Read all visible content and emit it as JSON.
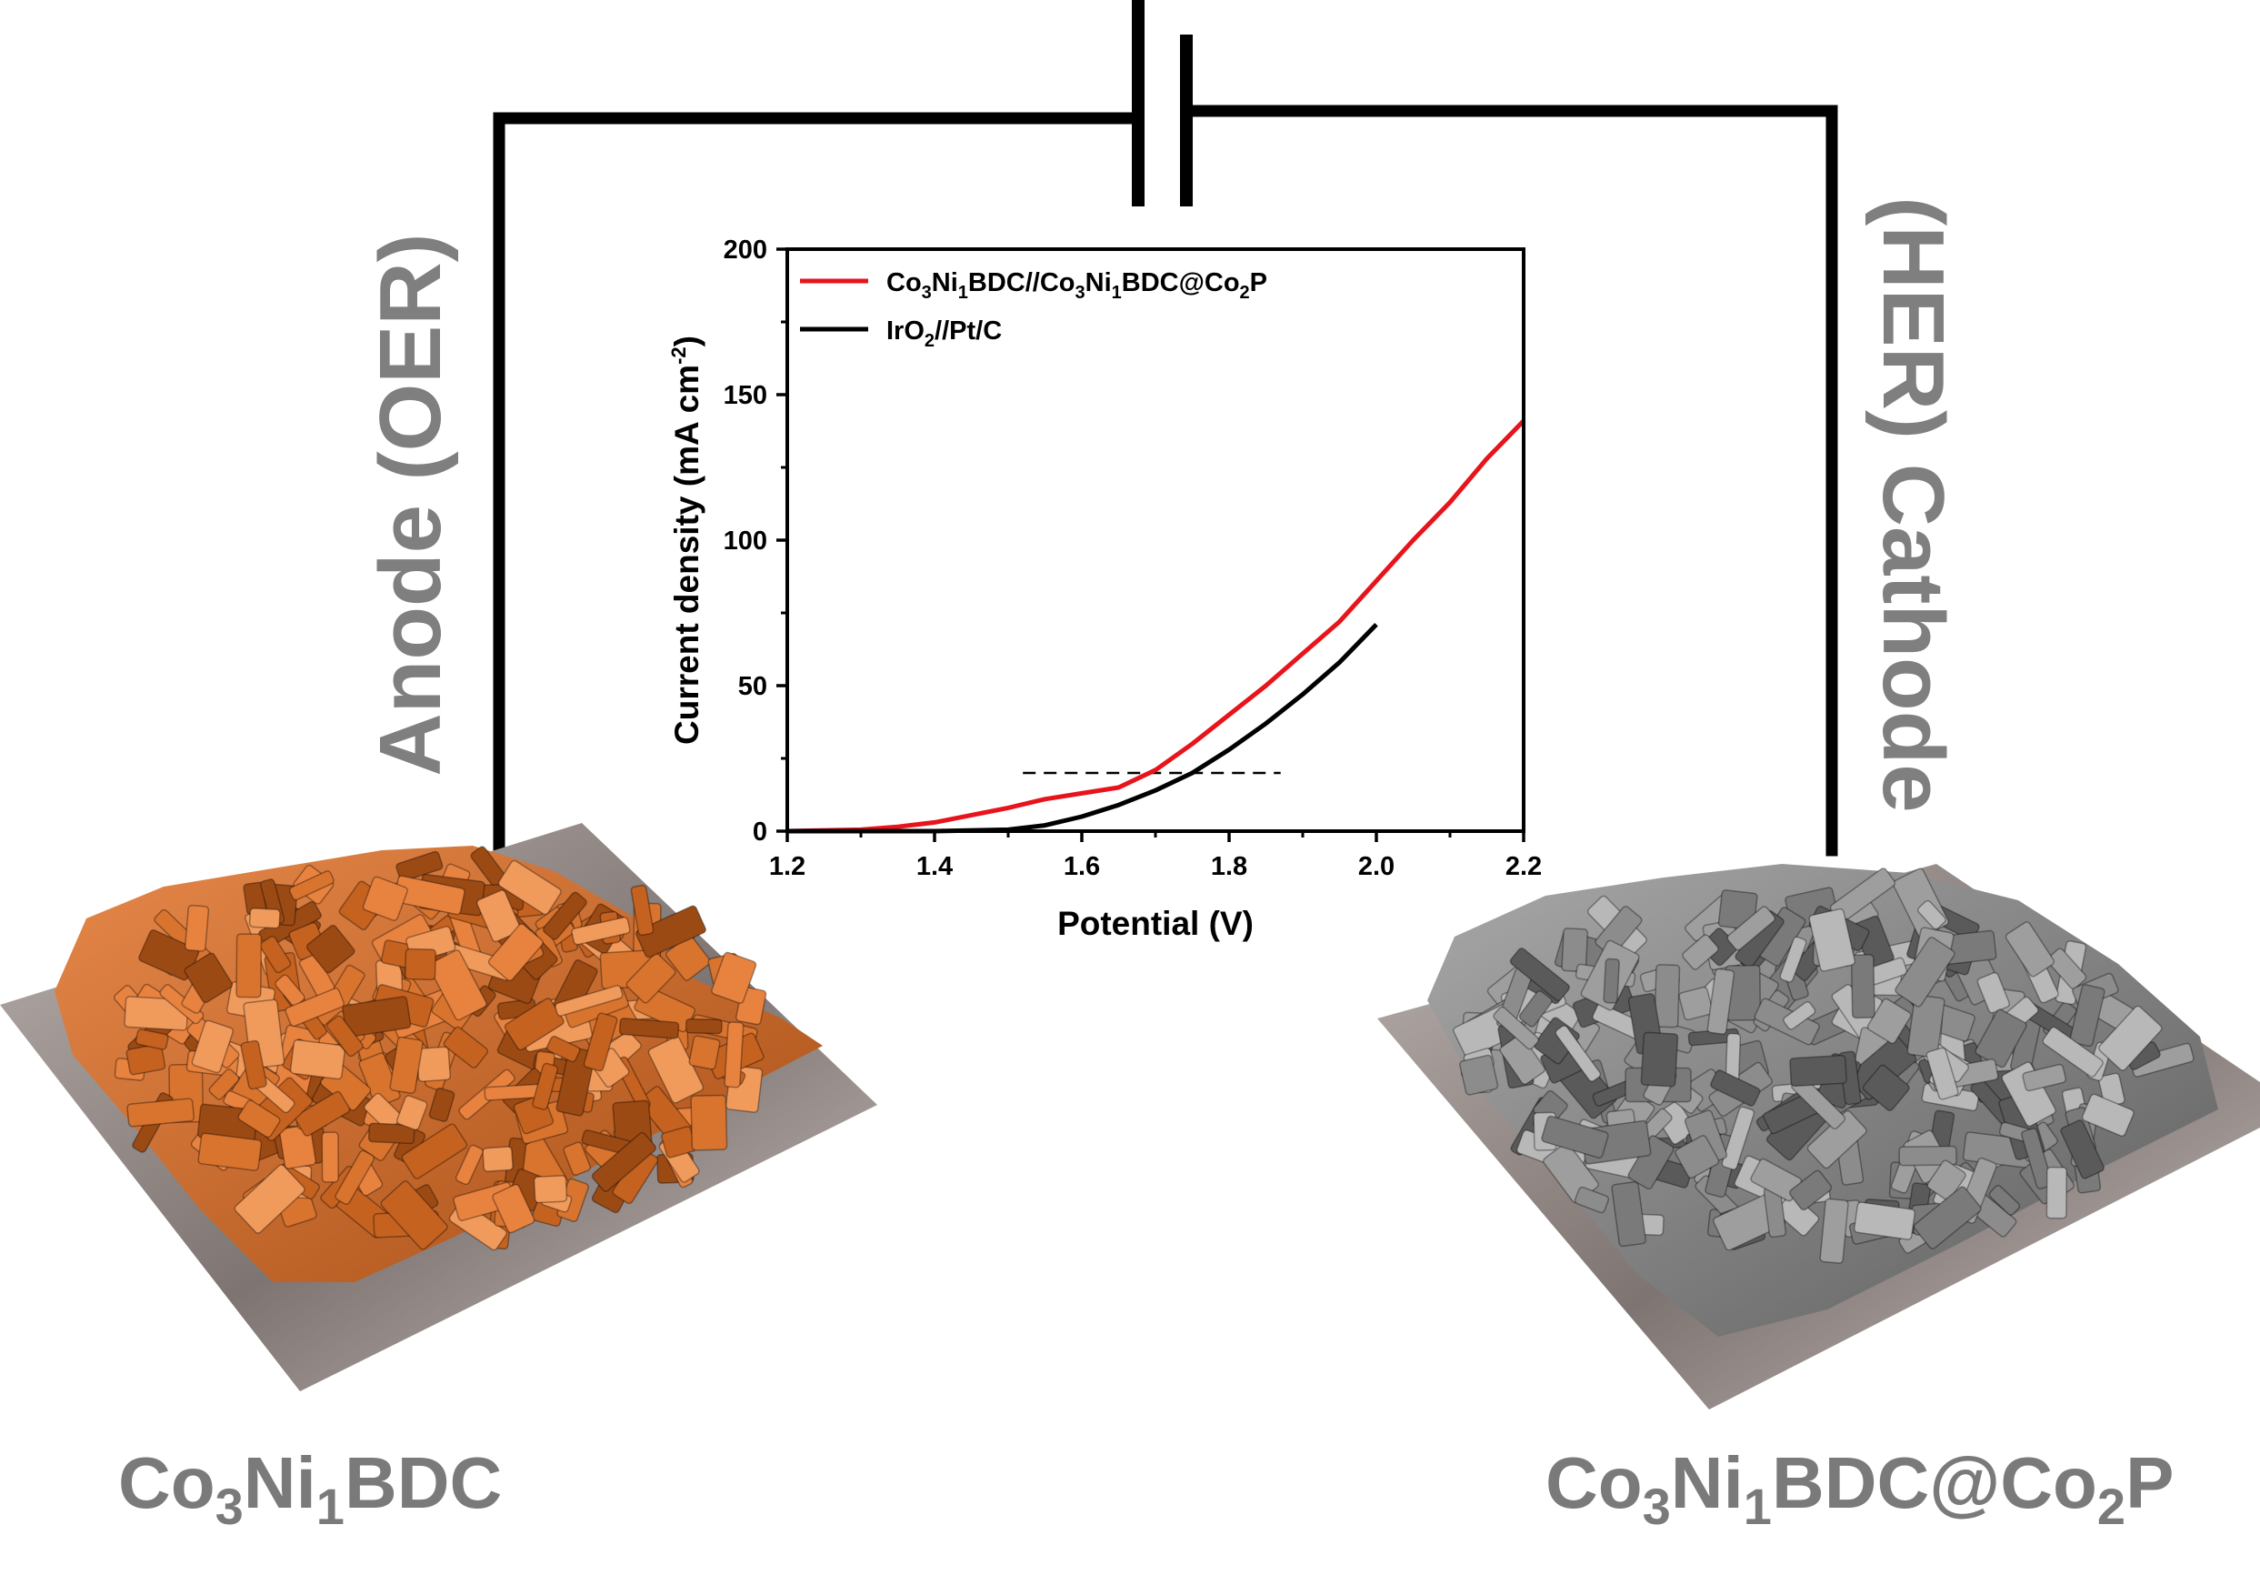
{
  "labels": {
    "anode": "Anode (OER)",
    "cathode": "(HER) Cathode",
    "anode_material": {
      "a": "Co",
      "a_sub": "3",
      "b": "Ni",
      "b_sub": "1",
      "c": "BDC"
    },
    "cathode_material": {
      "a": "Co",
      "a_sub": "3",
      "b": "Ni",
      "b_sub": "1",
      "c": "BDC@Co",
      "c_sub": "2",
      "d": "P"
    }
  },
  "colors": {
    "anode_film": "#d9742e",
    "cathode_film": "#8c8c8c",
    "substrate": "#8a7f7c",
    "circuit": "#000000",
    "series_red": "#e8141c",
    "series_black": "#000000"
  },
  "chart_data": {
    "type": "line",
    "title": "",
    "xlabel": "Potential (V)",
    "ylabel": "Current density (mA cm",
    "ylabel_sup": "-2",
    "ylabel_end": ")",
    "xlim": [
      1.2,
      2.2
    ],
    "ylim": [
      0,
      200
    ],
    "xticks": [
      "1.2",
      "1.4",
      "1.6",
      "1.8",
      "2.0",
      "2.2"
    ],
    "yticks": [
      "0",
      "50",
      "100",
      "150",
      "200"
    ],
    "legend_position": "top-left",
    "reference_line": {
      "y": 20,
      "x": [
        1.52,
        1.87
      ],
      "style": "dashed"
    },
    "series": [
      {
        "name": "Co3Ni1BDC//Co3Ni1BDC@Co2P",
        "legend": {
          "p1": "Co",
          "s1": "3",
          "p2": "Ni",
          "s2": "1",
          "p3": "BDC//Co",
          "s3": "3",
          "p4": "Ni",
          "s4": "1",
          "p5": "BDC@Co",
          "s5": "2",
          "p6": "P"
        },
        "color": "#e8141c",
        "x": [
          1.2,
          1.3,
          1.35,
          1.4,
          1.45,
          1.5,
          1.55,
          1.6,
          1.65,
          1.7,
          1.75,
          1.8,
          1.85,
          1.9,
          1.95,
          2.0,
          2.05,
          2.1,
          2.15,
          2.2
        ],
        "y": [
          0,
          0.5,
          1.5,
          3,
          5.5,
          8,
          11,
          13,
          15,
          21,
          30,
          40,
          50,
          61,
          72,
          86,
          100,
          113,
          128,
          141
        ]
      },
      {
        "name": "IrO2//Pt/C",
        "legend": {
          "p1": "IrO",
          "s1": "2",
          "p2": "//Pt/C"
        },
        "color": "#000000",
        "x": [
          1.2,
          1.3,
          1.4,
          1.5,
          1.55,
          1.6,
          1.65,
          1.7,
          1.75,
          1.8,
          1.85,
          1.9,
          1.95,
          2.0
        ],
        "y": [
          0,
          0,
          0,
          0.5,
          2,
          5,
          9,
          14,
          20,
          28,
          37,
          47,
          58,
          71
        ]
      }
    ]
  }
}
